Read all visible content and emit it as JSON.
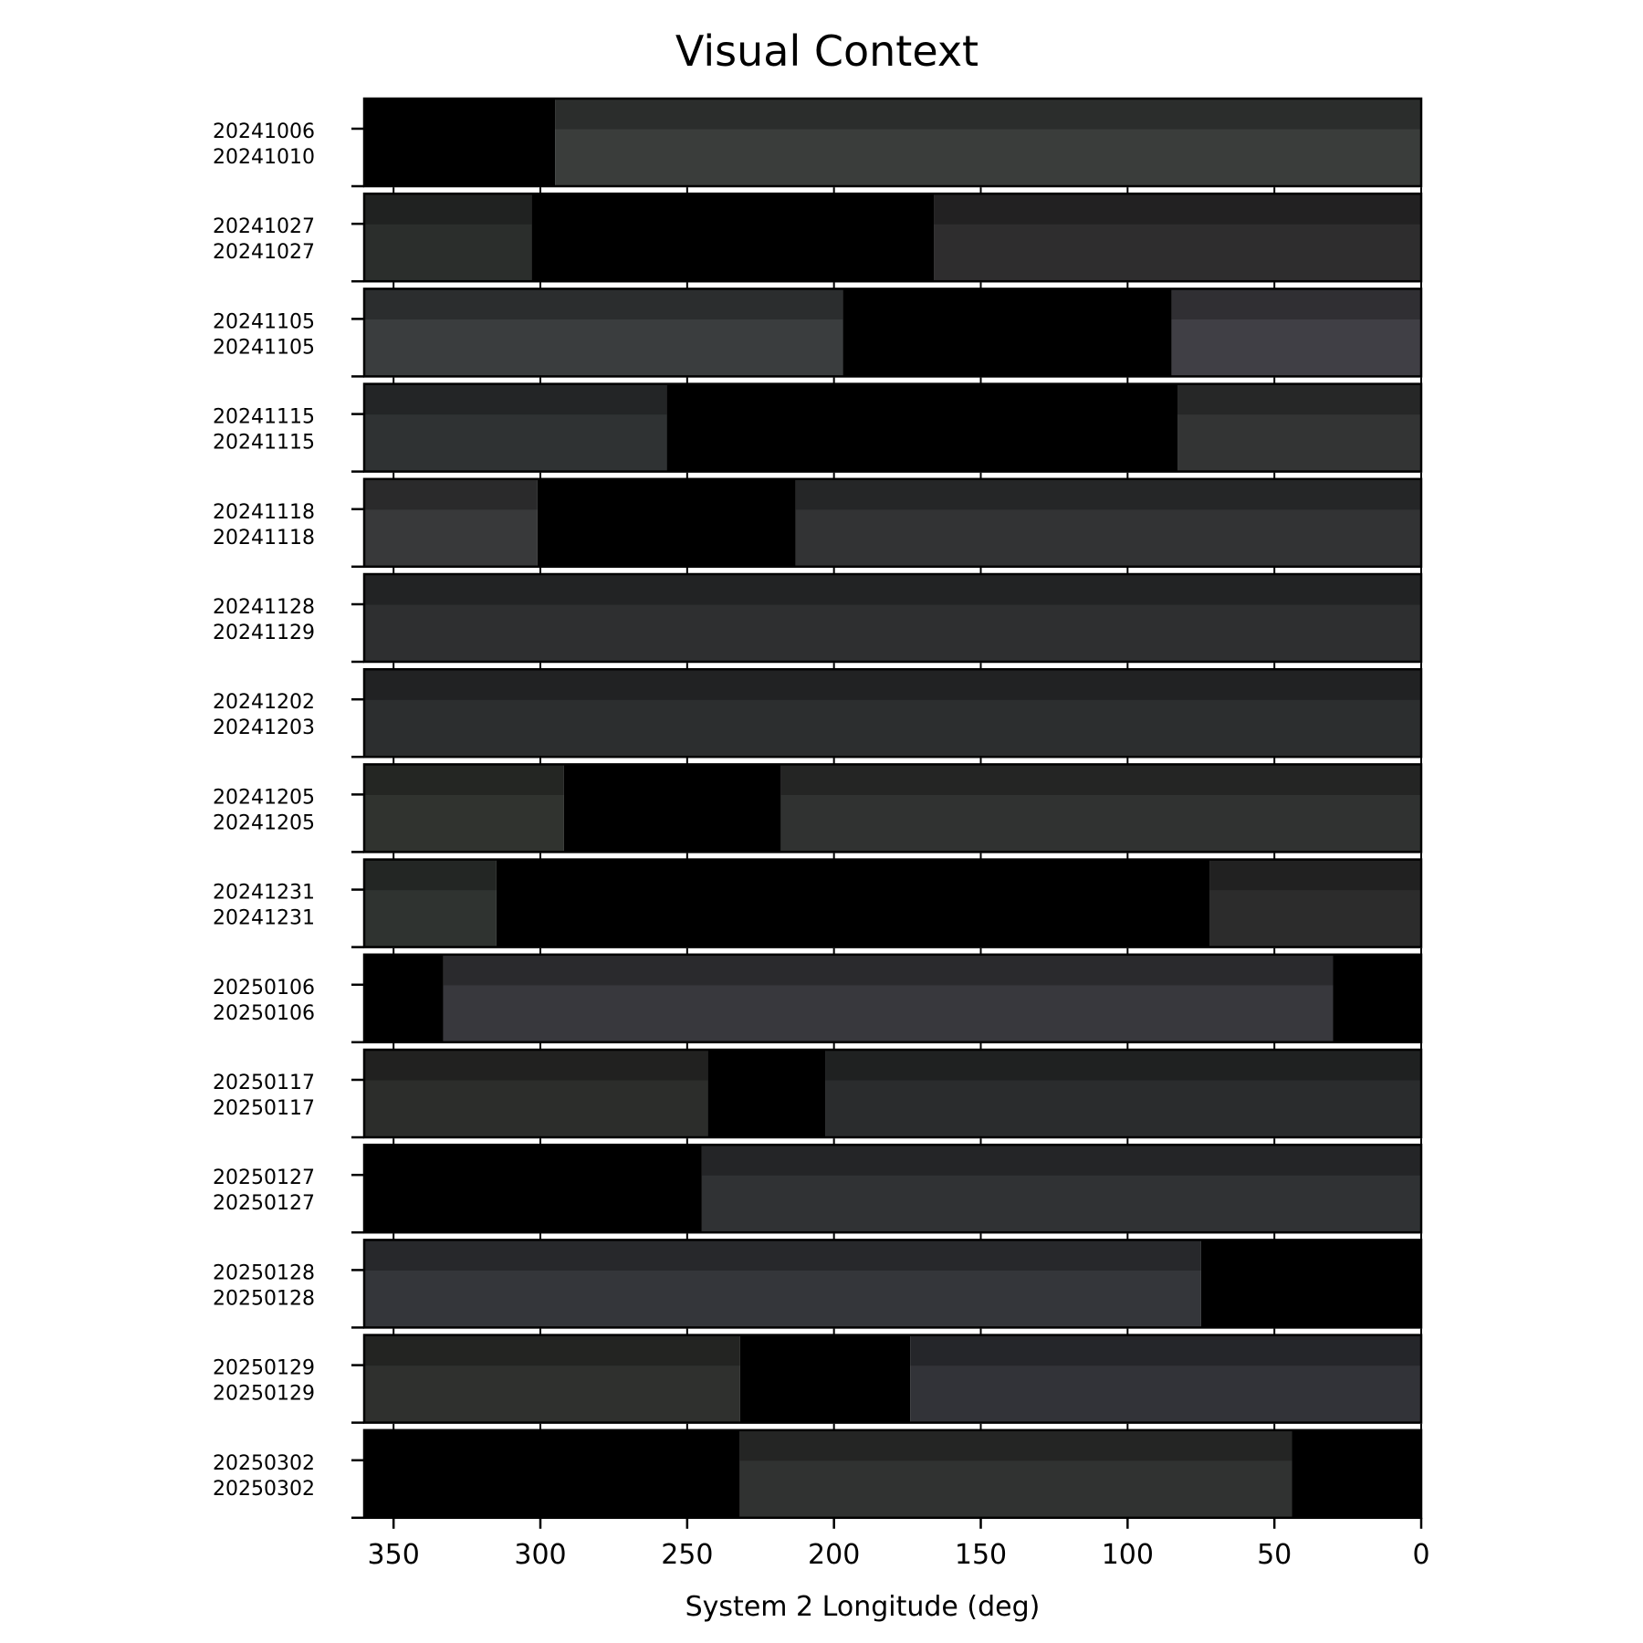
{
  "chart_data": {
    "type": "heatmap",
    "title": "Visual Context",
    "xlabel": "System 2 Longitude (deg)",
    "ylabel": "",
    "xlim": [
      360,
      0
    ],
    "xticks": [
      350,
      300,
      250,
      200,
      150,
      100,
      50,
      0
    ],
    "grid": false,
    "legend": "none",
    "colors": {
      "no_coverage": "#000000",
      "separator": "#ffffff",
      "frame": "#000000"
    },
    "rows": [
      {
        "label_start": "20241006",
        "label_end": "20241010",
        "segments": [
          {
            "from": 360,
            "to": 295,
            "coverage": false
          },
          {
            "from": 295,
            "to": 0,
            "coverage": true,
            "color": "#3a3d3b"
          }
        ]
      },
      {
        "label_start": "20241027",
        "label_end": "20241027",
        "segments": [
          {
            "from": 360,
            "to": 303,
            "coverage": true,
            "color": "#2b2e2c"
          },
          {
            "from": 303,
            "to": 166,
            "coverage": false
          },
          {
            "from": 166,
            "to": 0,
            "coverage": true,
            "color": "#2e2d2e"
          }
        ]
      },
      {
        "label_start": "20241105",
        "label_end": "20241105",
        "segments": [
          {
            "from": 360,
            "to": 197,
            "coverage": true,
            "color": "#3a3d3e"
          },
          {
            "from": 197,
            "to": 85,
            "coverage": false
          },
          {
            "from": 85,
            "to": 0,
            "coverage": true,
            "color": "#403f45"
          }
        ]
      },
      {
        "label_start": "20241115",
        "label_end": "20241115",
        "segments": [
          {
            "from": 360,
            "to": 257,
            "coverage": true,
            "color": "#2f3233"
          },
          {
            "from": 257,
            "to": 83,
            "coverage": false
          },
          {
            "from": 83,
            "to": 0,
            "coverage": true,
            "color": "#333434"
          }
        ]
      },
      {
        "label_start": "20241118",
        "label_end": "20241118",
        "segments": [
          {
            "from": 360,
            "to": 301,
            "coverage": true,
            "color": "#38393a"
          },
          {
            "from": 301,
            "to": 213,
            "coverage": false
          },
          {
            "from": 213,
            "to": 0,
            "coverage": true,
            "color": "#323334"
          }
        ]
      },
      {
        "label_start": "20241128",
        "label_end": "20241129",
        "segments": [
          {
            "from": 360,
            "to": 0,
            "coverage": true,
            "color": "#2e2f30"
          }
        ]
      },
      {
        "label_start": "20241202",
        "label_end": "20241203",
        "segments": [
          {
            "from": 360,
            "to": 0,
            "coverage": true,
            "color": "#2c2e2f"
          }
        ]
      },
      {
        "label_start": "20241205",
        "label_end": "20241205",
        "segments": [
          {
            "from": 360,
            "to": 292,
            "coverage": true,
            "color": "#30332f"
          },
          {
            "from": 292,
            "to": 218,
            "coverage": false
          },
          {
            "from": 218,
            "to": 0,
            "coverage": true,
            "color": "#303231"
          }
        ]
      },
      {
        "label_start": "20241231",
        "label_end": "20241231",
        "segments": [
          {
            "from": 360,
            "to": 315,
            "coverage": true,
            "color": "#2f3330"
          },
          {
            "from": 315,
            "to": 72,
            "coverage": false
          },
          {
            "from": 72,
            "to": 0,
            "coverage": true,
            "color": "#2c2c2c"
          }
        ]
      },
      {
        "label_start": "20250106",
        "label_end": "20250106",
        "segments": [
          {
            "from": 360,
            "to": 333,
            "coverage": false
          },
          {
            "from": 333,
            "to": 30,
            "coverage": true,
            "color": "#38383d"
          },
          {
            "from": 30,
            "to": 0,
            "coverage": false
          }
        ]
      },
      {
        "label_start": "20250117",
        "label_end": "20250117",
        "segments": [
          {
            "from": 360,
            "to": 243,
            "coverage": true,
            "color": "#2c2d2b"
          },
          {
            "from": 243,
            "to": 203,
            "coverage": false
          },
          {
            "from": 203,
            "to": 0,
            "coverage": true,
            "color": "#2a2c2d"
          }
        ]
      },
      {
        "label_start": "20250127",
        "label_end": "20250127",
        "segments": [
          {
            "from": 360,
            "to": 245,
            "coverage": false
          },
          {
            "from": 245,
            "to": 0,
            "coverage": true,
            "color": "#303234"
          }
        ]
      },
      {
        "label_start": "20250128",
        "label_end": "20250128",
        "segments": [
          {
            "from": 360,
            "to": 75,
            "coverage": true,
            "color": "#34363a"
          },
          {
            "from": 75,
            "to": 0,
            "coverage": false
          }
        ]
      },
      {
        "label_start": "20250129",
        "label_end": "20250129",
        "segments": [
          {
            "from": 360,
            "to": 232,
            "coverage": true,
            "color": "#2f302e"
          },
          {
            "from": 232,
            "to": 174,
            "coverage": false
          },
          {
            "from": 174,
            "to": 0,
            "coverage": true,
            "color": "#323338"
          }
        ]
      },
      {
        "label_start": "20250302",
        "label_end": "20250302",
        "segments": [
          {
            "from": 360,
            "to": 232,
            "coverage": false
          },
          {
            "from": 232,
            "to": 44,
            "coverage": true,
            "color": "#303231"
          },
          {
            "from": 44,
            "to": 0,
            "coverage": false
          }
        ]
      }
    ]
  }
}
